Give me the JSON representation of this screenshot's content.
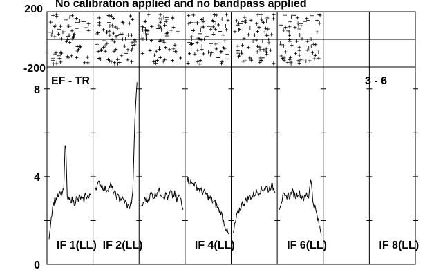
{
  "chart_data": {
    "type": "line",
    "title": "No calibration applied and no bandpass applied",
    "baseline_label": "EF - TR",
    "subplot_range_label": "3 - 6",
    "phase_panel": {
      "type": "scatter",
      "ylim": [
        -200,
        200
      ],
      "ytick_labels": [
        "200",
        "-200"
      ],
      "marker": "+",
      "populated_ifs": [
        1,
        2,
        3,
        4,
        5,
        6
      ]
    },
    "amplitude_panel": {
      "ylim": [
        0,
        9
      ],
      "ytick_labels": [
        "8",
        "4",
        "0"
      ],
      "ytick_values": [
        8,
        4,
        0
      ],
      "grid": false
    },
    "ifs": [
      {
        "if": 1,
        "label": "IF 1(LL)",
        "shown": true,
        "values": [
          1.3,
          2.0,
          2.7,
          2.9,
          3.0,
          3.1,
          3.2,
          3.2,
          3.3,
          5.9,
          3.0,
          2.9,
          3.0,
          2.9,
          2.8,
          3.0,
          2.9,
          3.1,
          2.9,
          2.9,
          3.2,
          3.1,
          3.0,
          3.3
        ]
      },
      {
        "if": 2,
        "label": "IF 2(LL)",
        "shown": true,
        "values": [
          3.5,
          3.6,
          3.7,
          3.6,
          3.5,
          3.4,
          3.5,
          3.6,
          3.4,
          3.2,
          3.1,
          3.0,
          3.0,
          2.9,
          2.8,
          2.6,
          2.7,
          3.0,
          6.5,
          8.4
        ]
      },
      {
        "if": 3,
        "label": "",
        "shown": true,
        "values": [
          2.5,
          2.8,
          3.0,
          2.9,
          3.1,
          3.2,
          3.1,
          3.2,
          3.4,
          3.3,
          3.2,
          3.1,
          3.2,
          3.0,
          3.3,
          3.1,
          3.2,
          2.9,
          3.1,
          3.0,
          2.6
        ]
      },
      {
        "if": 4,
        "label": "IF 4(LL)",
        "shown": true,
        "values": [
          3.9,
          3.8,
          3.7,
          3.7,
          3.6,
          3.5,
          3.4,
          3.3,
          3.3,
          3.2,
          3.1,
          3.0,
          2.9,
          2.8,
          2.7,
          2.5,
          2.4,
          2.1,
          1.8,
          1.5,
          1.3
        ]
      },
      {
        "if": 5,
        "label": "",
        "shown": true,
        "values": [
          1.4,
          1.9,
          2.3,
          2.5,
          2.7,
          2.8,
          2.9,
          3.0,
          3.1,
          3.1,
          3.2,
          3.3,
          3.3,
          3.4,
          3.4,
          3.5,
          3.5,
          3.4,
          3.6,
          3.5,
          3.4
        ]
      },
      {
        "if": 6,
        "label": "IF 6(LL)",
        "shown": true,
        "values": [
          2.6,
          2.9,
          3.1,
          3.0,
          3.2,
          3.1,
          3.3,
          3.2,
          3.1,
          3.3,
          3.2,
          3.1,
          3.0,
          3.2,
          3.1,
          4.0,
          2.9,
          2.6,
          2.2,
          1.8,
          1.4
        ]
      },
      {
        "if": 7,
        "label": "",
        "shown": false,
        "values": []
      },
      {
        "if": 8,
        "label": "IF 8(LL)",
        "shown": false,
        "values": []
      }
    ]
  }
}
